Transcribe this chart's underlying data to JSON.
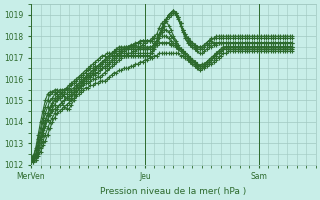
{
  "title": "",
  "xlabel": "Pression niveau de la mer( hPa )",
  "ylabel": "",
  "ylim": [
    1012,
    1019.5
  ],
  "xlim": [
    0,
    120
  ],
  "background_color": "#c8eee8",
  "grid_color": "#a0c8c0",
  "line_color": "#2d6a2d",
  "marker_color": "#2d6a2d",
  "tick_label_color": "#2d6a2d",
  "yticks": [
    1012,
    1013,
    1014,
    1015,
    1016,
    1017,
    1018,
    1019
  ],
  "xtick_labels": [
    [
      "MerVen",
      0
    ],
    [
      "Jeu",
      48
    ],
    [
      "Sam",
      96
    ]
  ],
  "series": [
    [
      1012.2,
      1012.1,
      1012.2,
      1012.4,
      1012.6,
      1012.9,
      1013.1,
      1013.4,
      1013.7,
      1014.0,
      1014.2,
      1014.4,
      1014.5,
      1014.6,
      1014.7,
      1014.8,
      1014.9,
      1015.0,
      1015.1,
      1015.2,
      1015.3,
      1015.4,
      1015.5,
      1015.6,
      1015.6,
      1015.7,
      1015.7,
      1015.8,
      1015.8,
      1015.9,
      1015.9,
      1015.9,
      1016.0,
      1016.1,
      1016.2,
      1016.3,
      1016.3,
      1016.4,
      1016.4,
      1016.5,
      1016.5,
      1016.5,
      1016.6,
      1016.6,
      1016.7,
      1016.7,
      1016.8,
      1016.8,
      1016.9,
      1016.9,
      1017.0,
      1017.0,
      1017.1,
      1017.1,
      1017.2,
      1017.2,
      1017.2,
      1017.2,
      1017.2,
      1017.2,
      1017.2,
      1017.2,
      1017.2,
      1017.1,
      1017.1,
      1017.0,
      1016.9,
      1016.8,
      1016.7,
      1016.6,
      1016.5,
      1016.4,
      1016.5,
      1016.6,
      1016.7,
      1016.8,
      1016.9,
      1017.0,
      1017.1,
      1017.2,
      1017.3,
      1017.4,
      1017.5,
      1017.5,
      1017.5,
      1017.5,
      1017.5,
      1017.5,
      1017.5,
      1017.5,
      1017.5,
      1017.5,
      1017.5,
      1017.5,
      1017.5,
      1017.5,
      1017.5,
      1017.5,
      1017.5,
      1017.5,
      1017.5,
      1017.5,
      1017.5,
      1017.5,
      1017.5,
      1017.5,
      1017.5,
      1017.5,
      1017.5,
      1017.5,
      1017.5
    ],
    [
      1012.2,
      1012.1,
      1012.2,
      1012.5,
      1012.8,
      1013.1,
      1013.4,
      1013.7,
      1014.0,
      1014.2,
      1014.4,
      1014.6,
      1014.8,
      1014.9,
      1015.0,
      1015.1,
      1015.2,
      1015.2,
      1015.3,
      1015.4,
      1015.5,
      1015.6,
      1015.7,
      1015.8,
      1015.8,
      1015.9,
      1016.0,
      1016.0,
      1016.1,
      1016.1,
      1016.2,
      1016.3,
      1016.4,
      1016.5,
      1016.6,
      1016.7,
      1016.8,
      1016.9,
      1017.0,
      1017.1,
      1017.1,
      1017.2,
      1017.2,
      1017.3,
      1017.3,
      1017.4,
      1017.4,
      1017.4,
      1017.4,
      1017.4,
      1017.5,
      1017.5,
      1017.6,
      1017.6,
      1017.7,
      1017.7,
      1017.7,
      1017.7,
      1017.7,
      1017.6,
      1017.6,
      1017.5,
      1017.4,
      1017.3,
      1017.2,
      1017.1,
      1017.0,
      1016.9,
      1016.8,
      1016.7,
      1016.6,
      1016.5,
      1016.5,
      1016.5,
      1016.6,
      1016.7,
      1016.7,
      1016.8,
      1016.9,
      1017.0,
      1017.1,
      1017.2,
      1017.2,
      1017.3,
      1017.3,
      1017.3,
      1017.3,
      1017.3,
      1017.3,
      1017.3,
      1017.3,
      1017.3,
      1017.3,
      1017.3,
      1017.3,
      1017.3,
      1017.3,
      1017.3,
      1017.3,
      1017.3,
      1017.3,
      1017.3,
      1017.3,
      1017.3,
      1017.3,
      1017.3,
      1017.3,
      1017.3,
      1017.3,
      1017.3,
      1017.3
    ],
    [
      1012.3,
      1012.2,
      1012.3,
      1012.6,
      1013.0,
      1013.4,
      1013.8,
      1014.1,
      1014.4,
      1014.6,
      1014.8,
      1015.0,
      1015.1,
      1015.2,
      1015.3,
      1015.3,
      1015.4,
      1015.4,
      1015.5,
      1015.6,
      1015.7,
      1015.8,
      1015.9,
      1016.0,
      1016.1,
      1016.1,
      1016.2,
      1016.2,
      1016.3,
      1016.4,
      1016.5,
      1016.6,
      1016.7,
      1016.8,
      1016.9,
      1017.0,
      1017.1,
      1017.2,
      1017.3,
      1017.4,
      1017.5,
      1017.5,
      1017.6,
      1017.6,
      1017.7,
      1017.7,
      1017.8,
      1017.8,
      1017.8,
      1017.8,
      1017.8,
      1017.8,
      1017.9,
      1017.9,
      1018.0,
      1018.0,
      1018.0,
      1018.0,
      1017.9,
      1017.8,
      1017.7,
      1017.6,
      1017.5,
      1017.4,
      1017.3,
      1017.2,
      1017.1,
      1017.0,
      1016.9,
      1016.8,
      1016.7,
      1016.6,
      1016.6,
      1016.6,
      1016.7,
      1016.8,
      1016.9,
      1017.0,
      1017.1,
      1017.2,
      1017.3,
      1017.4,
      1017.4,
      1017.4,
      1017.4,
      1017.4,
      1017.4,
      1017.4,
      1017.4,
      1017.4,
      1017.4,
      1017.4,
      1017.4,
      1017.4,
      1017.4,
      1017.4,
      1017.4,
      1017.4,
      1017.4,
      1017.4,
      1017.4,
      1017.4,
      1017.4,
      1017.4,
      1017.4,
      1017.4,
      1017.4,
      1017.4,
      1017.4,
      1017.4,
      1017.4
    ],
    [
      1012.2,
      1012.2,
      1012.4,
      1012.8,
      1013.2,
      1013.5,
      1013.8,
      1014.1,
      1014.3,
      1014.5,
      1014.6,
      1014.7,
      1014.8,
      1014.9,
      1015.0,
      1015.1,
      1015.2,
      1015.3,
      1015.4,
      1015.5,
      1015.6,
      1015.7,
      1015.8,
      1015.9,
      1016.0,
      1016.1,
      1016.2,
      1016.3,
      1016.3,
      1016.4,
      1016.5,
      1016.5,
      1016.6,
      1016.7,
      1016.8,
      1016.9,
      1017.0,
      1017.1,
      1017.2,
      1017.3,
      1017.4,
      1017.5,
      1017.5,
      1017.6,
      1017.6,
      1017.7,
      1017.7,
      1017.8,
      1017.8,
      1017.8,
      1017.8,
      1017.8,
      1017.9,
      1017.9,
      1018.1,
      1018.2,
      1018.3,
      1018.3,
      1018.2,
      1018.0,
      1017.9,
      1017.7,
      1017.5,
      1017.4,
      1017.3,
      1017.2,
      1017.1,
      1017.0,
      1016.9,
      1016.8,
      1016.7,
      1016.6,
      1016.7,
      1016.7,
      1016.8,
      1016.9,
      1017.0,
      1017.1,
      1017.2,
      1017.3,
      1017.4,
      1017.5,
      1017.5,
      1017.5,
      1017.5,
      1017.5,
      1017.5,
      1017.5,
      1017.5,
      1017.5,
      1017.5,
      1017.5,
      1017.5,
      1017.5,
      1017.5,
      1017.5,
      1017.5,
      1017.5,
      1017.5,
      1017.5,
      1017.5,
      1017.5,
      1017.5,
      1017.5,
      1017.5,
      1017.5,
      1017.5,
      1017.5,
      1017.5,
      1017.5,
      1017.5
    ],
    [
      1012.3,
      1012.2,
      1012.4,
      1012.8,
      1013.2,
      1013.6,
      1014.0,
      1014.3,
      1014.6,
      1014.8,
      1015.0,
      1015.1,
      1015.2,
      1015.3,
      1015.4,
      1015.5,
      1015.6,
      1015.7,
      1015.8,
      1015.9,
      1016.0,
      1016.1,
      1016.2,
      1016.3,
      1016.4,
      1016.5,
      1016.5,
      1016.6,
      1016.6,
      1016.7,
      1016.8,
      1016.9,
      1017.0,
      1017.1,
      1017.2,
      1017.3,
      1017.4,
      1017.5,
      1017.5,
      1017.5,
      1017.5,
      1017.5,
      1017.5,
      1017.5,
      1017.5,
      1017.5,
      1017.5,
      1017.6,
      1017.7,
      1017.8,
      1017.8,
      1017.9,
      1018.0,
      1018.1,
      1018.4,
      1018.6,
      1018.7,
      1018.7,
      1018.5,
      1018.3,
      1018.0,
      1017.8,
      1017.6,
      1017.4,
      1017.3,
      1017.2,
      1017.1,
      1017.0,
      1016.9,
      1016.8,
      1016.7,
      1016.6,
      1016.6,
      1016.7,
      1016.8,
      1016.9,
      1017.0,
      1017.1,
      1017.2,
      1017.3,
      1017.4,
      1017.5,
      1017.5,
      1017.5,
      1017.5,
      1017.5,
      1017.5,
      1017.5,
      1017.5,
      1017.5,
      1017.5,
      1017.5,
      1017.5,
      1017.5,
      1017.5,
      1017.5,
      1017.5,
      1017.5,
      1017.5,
      1017.5,
      1017.5,
      1017.5,
      1017.5,
      1017.5,
      1017.5,
      1017.5,
      1017.5,
      1017.5,
      1017.5,
      1017.5,
      1017.5
    ],
    [
      1012.4,
      1012.3,
      1012.5,
      1012.9,
      1013.3,
      1013.7,
      1014.1,
      1014.4,
      1014.7,
      1014.9,
      1015.1,
      1015.2,
      1015.3,
      1015.4,
      1015.5,
      1015.6,
      1015.7,
      1015.8,
      1015.9,
      1016.0,
      1016.1,
      1016.2,
      1016.3,
      1016.4,
      1016.5,
      1016.6,
      1016.7,
      1016.8,
      1016.9,
      1017.0,
      1017.1,
      1017.1,
      1017.2,
      1017.2,
      1017.2,
      1017.2,
      1017.3,
      1017.3,
      1017.4,
      1017.4,
      1017.4,
      1017.4,
      1017.5,
      1017.5,
      1017.5,
      1017.5,
      1017.5,
      1017.5,
      1017.5,
      1017.5,
      1017.5,
      1017.5,
      1017.7,
      1017.8,
      1018.1,
      1018.4,
      1018.6,
      1018.8,
      1018.9,
      1019.0,
      1019.1,
      1019.0,
      1018.8,
      1018.5,
      1018.2,
      1017.9,
      1017.7,
      1017.6,
      1017.5,
      1017.4,
      1017.3,
      1017.2,
      1017.2,
      1017.3,
      1017.4,
      1017.5,
      1017.5,
      1017.6,
      1017.6,
      1017.7,
      1017.7,
      1017.7,
      1017.7,
      1017.7,
      1017.7,
      1017.7,
      1017.7,
      1017.7,
      1017.7,
      1017.7,
      1017.7,
      1017.7,
      1017.7,
      1017.7,
      1017.7,
      1017.7,
      1017.7,
      1017.7,
      1017.7,
      1017.7,
      1017.7,
      1017.7,
      1017.7,
      1017.7,
      1017.7,
      1017.7,
      1017.7,
      1017.7,
      1017.7,
      1017.7,
      1017.7
    ],
    [
      1012.4,
      1012.3,
      1012.5,
      1013.0,
      1013.5,
      1014.0,
      1014.4,
      1014.7,
      1015.0,
      1015.1,
      1015.3,
      1015.4,
      1015.5,
      1015.5,
      1015.5,
      1015.5,
      1015.5,
      1015.5,
      1015.6,
      1015.7,
      1015.8,
      1015.9,
      1016.0,
      1016.1,
      1016.2,
      1016.3,
      1016.4,
      1016.5,
      1016.6,
      1016.7,
      1016.8,
      1016.9,
      1017.0,
      1017.1,
      1017.2,
      1017.3,
      1017.4,
      1017.4,
      1017.4,
      1017.4,
      1017.4,
      1017.4,
      1017.4,
      1017.4,
      1017.4,
      1017.4,
      1017.4,
      1017.4,
      1017.4,
      1017.4,
      1017.4,
      1017.5,
      1017.6,
      1017.8,
      1018.0,
      1018.2,
      1018.5,
      1018.8,
      1019.0,
      1019.1,
      1019.2,
      1019.1,
      1018.9,
      1018.6,
      1018.3,
      1018.0,
      1017.8,
      1017.7,
      1017.6,
      1017.5,
      1017.4,
      1017.4,
      1017.4,
      1017.5,
      1017.6,
      1017.6,
      1017.7,
      1017.7,
      1017.7,
      1017.7,
      1017.7,
      1017.7,
      1017.7,
      1017.7,
      1017.7,
      1017.7,
      1017.7,
      1017.7,
      1017.7,
      1017.7,
      1017.7,
      1017.7,
      1017.7,
      1017.7,
      1017.7,
      1017.7,
      1017.7,
      1017.7,
      1017.7,
      1017.7,
      1017.7,
      1017.7,
      1017.7,
      1017.7,
      1017.7,
      1017.7,
      1017.7,
      1017.7,
      1017.7,
      1017.7,
      1017.7
    ],
    [
      1012.4,
      1012.4,
      1012.7,
      1013.2,
      1013.7,
      1014.2,
      1014.7,
      1015.0,
      1015.3,
      1015.4,
      1015.5,
      1015.5,
      1015.4,
      1015.3,
      1015.2,
      1015.1,
      1015.0,
      1015.1,
      1015.3,
      1015.5,
      1015.7,
      1015.9,
      1016.0,
      1016.1,
      1016.2,
      1016.3,
      1016.4,
      1016.5,
      1016.6,
      1016.7,
      1016.8,
      1016.9,
      1017.0,
      1017.1,
      1017.2,
      1017.2,
      1017.2,
      1017.2,
      1017.2,
      1017.2,
      1017.2,
      1017.2,
      1017.2,
      1017.2,
      1017.2,
      1017.2,
      1017.2,
      1017.2,
      1017.2,
      1017.2,
      1017.2,
      1017.3,
      1017.5,
      1017.7,
      1018.0,
      1018.3,
      1018.5,
      1018.8,
      1019.0,
      1019.1,
      1019.2,
      1019.1,
      1018.9,
      1018.6,
      1018.3,
      1018.1,
      1017.9,
      1017.8,
      1017.7,
      1017.6,
      1017.5,
      1017.5,
      1017.5,
      1017.6,
      1017.7,
      1017.8,
      1017.8,
      1017.9,
      1017.9,
      1017.9,
      1017.9,
      1017.9,
      1017.9,
      1017.9,
      1017.9,
      1017.9,
      1017.9,
      1017.9,
      1017.9,
      1017.9,
      1017.9,
      1017.9,
      1017.9,
      1017.9,
      1017.9,
      1017.9,
      1017.9,
      1017.9,
      1017.9,
      1017.9,
      1017.9,
      1017.9,
      1017.9,
      1017.9,
      1017.9,
      1017.9,
      1017.9,
      1017.9,
      1017.9,
      1017.9,
      1017.9
    ],
    [
      1012.4,
      1012.4,
      1012.8,
      1013.4,
      1014.0,
      1014.5,
      1015.0,
      1015.3,
      1015.4,
      1015.4,
      1015.4,
      1015.3,
      1015.1,
      1014.9,
      1014.7,
      1014.6,
      1014.6,
      1014.8,
      1015.0,
      1015.3,
      1015.5,
      1015.7,
      1015.9,
      1016.0,
      1016.1,
      1016.2,
      1016.3,
      1016.4,
      1016.5,
      1016.6,
      1016.7,
      1016.8,
      1016.9,
      1017.0,
      1017.1,
      1017.1,
      1017.1,
      1017.1,
      1017.1,
      1017.1,
      1017.1,
      1017.1,
      1017.1,
      1017.1,
      1017.1,
      1017.1,
      1017.1,
      1017.1,
      1017.1,
      1017.1,
      1017.1,
      1017.2,
      1017.4,
      1017.6,
      1017.9,
      1018.2,
      1018.5,
      1018.8,
      1019.0,
      1019.1,
      1019.2,
      1019.1,
      1018.9,
      1018.6,
      1018.3,
      1018.1,
      1017.9,
      1017.8,
      1017.7,
      1017.6,
      1017.5,
      1017.5,
      1017.5,
      1017.6,
      1017.7,
      1017.8,
      1017.9,
      1017.9,
      1018.0,
      1018.0,
      1018.0,
      1018.0,
      1018.0,
      1018.0,
      1018.0,
      1018.0,
      1018.0,
      1018.0,
      1018.0,
      1018.0,
      1018.0,
      1018.0,
      1018.0,
      1018.0,
      1018.0,
      1018.0,
      1018.0,
      1018.0,
      1018.0,
      1018.0,
      1018.0,
      1018.0,
      1018.0,
      1018.0,
      1018.0,
      1018.0,
      1018.0,
      1018.0,
      1018.0,
      1018.0,
      1018.0
    ]
  ],
  "marker": "+",
  "markersize": 2.5,
  "linewidth": 0.8
}
